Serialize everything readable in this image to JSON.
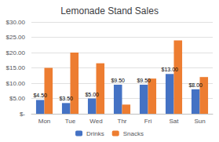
{
  "chart_data": {
    "type": "bar",
    "title": "Lemonade Stand Sales",
    "categories": [
      "Mon",
      "Tue",
      "Wed",
      "Thr",
      "Fri",
      "Sat",
      "Sun"
    ],
    "series": [
      {
        "name": "Drinks",
        "color": "#4472C4",
        "values": [
          4.5,
          3.5,
          5.0,
          9.5,
          9.5,
          13.0,
          8.0
        ],
        "value_labels": [
          "$4.50",
          "$3.50",
          "$5.00",
          "$9.50",
          "$9.50",
          "$13.00",
          "$8.00"
        ],
        "data_labels": true
      },
      {
        "name": "Snacks",
        "color": "#ED7D31",
        "values": [
          15.0,
          20.0,
          16.5,
          3.0,
          11.5,
          24.0,
          12.0
        ]
      }
    ],
    "ylim": [
      0,
      30
    ],
    "yticks": [
      {
        "value": 0,
        "label": "$-"
      },
      {
        "value": 5,
        "label": "$5.00"
      },
      {
        "value": 10,
        "label": "$10.00"
      },
      {
        "value": 15,
        "label": "$15.00"
      },
      {
        "value": 20,
        "label": "$20.00"
      },
      {
        "value": 25,
        "label": "$25.00"
      },
      {
        "value": 30,
        "label": "$30.00"
      }
    ],
    "grid": true,
    "legend": "bottom"
  }
}
